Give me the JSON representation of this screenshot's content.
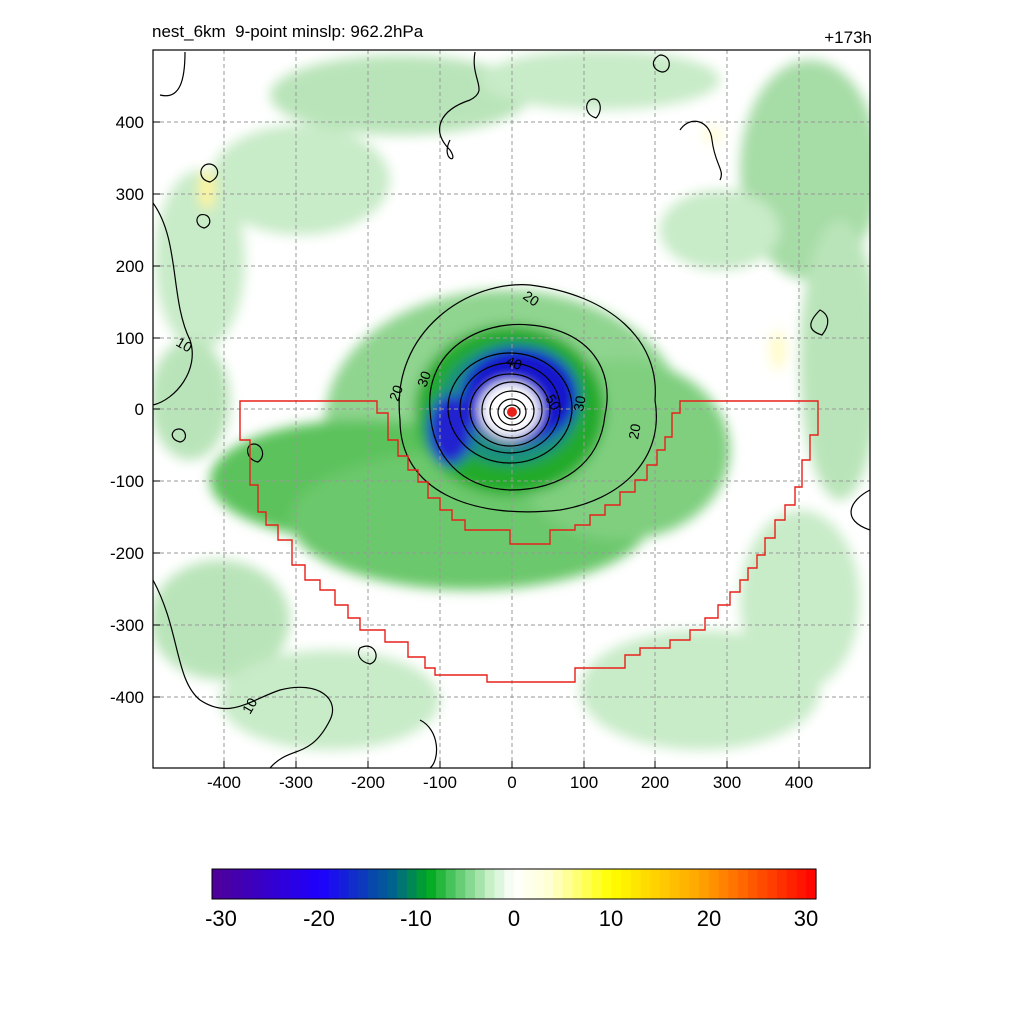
{
  "header": {
    "title": "nest_6km  9-point minslp: 962.2hPa",
    "forecast_hour": "+173h"
  },
  "chart_data": {
    "type": "heatmap",
    "x_ticks": [
      "-400",
      "-300",
      "-200",
      "-100",
      "0",
      "100",
      "200",
      "300",
      "400"
    ],
    "y_ticks": [
      "400",
      "300",
      "200",
      "100",
      "0",
      "-100",
      "-200",
      "-300",
      "-400"
    ],
    "xlim": [
      -500,
      500
    ],
    "ylim": [
      -500,
      500
    ],
    "grid": true,
    "colorbar": {
      "ticks": [
        "-30",
        "-20",
        "-10",
        "0",
        "10",
        "20",
        "30"
      ],
      "range": [
        -30,
        30
      ]
    },
    "contour_labels": [
      "20",
      "10",
      "20",
      "30",
      "40",
      "50",
      "30",
      "20",
      "10"
    ],
    "storm_center": [
      0,
      -5
    ]
  }
}
